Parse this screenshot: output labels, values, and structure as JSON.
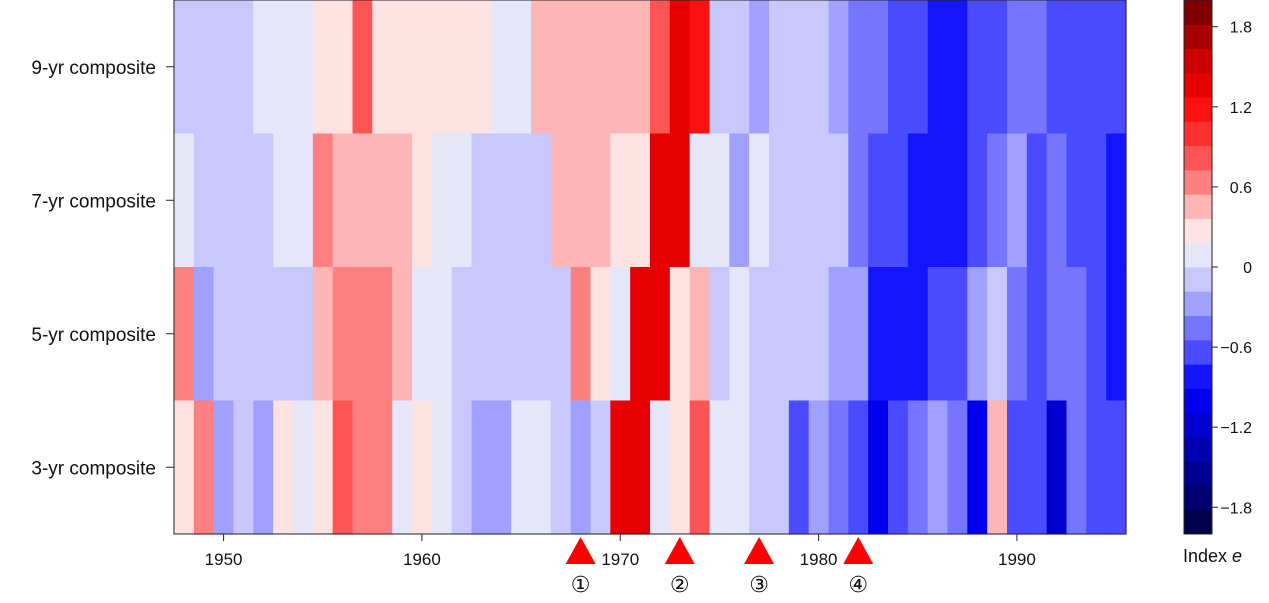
{
  "chart_data": {
    "type": "heatmap",
    "xlabel": "",
    "ylabel": "",
    "x_start": 1948,
    "x_end": 1995,
    "xlim": [
      1947.5,
      1995.5
    ],
    "x_ticks": [
      "1950",
      "1960",
      "1970",
      "1980",
      "1990"
    ],
    "rows": [
      {
        "label": "9-yr composite",
        "values": [
          0.1,
          0.1,
          0.1,
          0.1,
          0.3,
          0.3,
          0.3,
          0.5,
          0.5,
          1.0,
          0.5,
          0.5,
          0.5,
          0.5,
          0.5,
          0.5,
          0.3,
          0.3,
          0.7,
          0.7,
          0.7,
          0.7,
          0.7,
          0.7,
          1.0,
          1.6,
          1.4,
          0.1,
          0.1,
          -0.1,
          0.1,
          0.1,
          0.1,
          -0.1,
          -0.3,
          -0.3,
          -0.5,
          -0.5,
          -0.7,
          -0.7,
          -0.5,
          -0.5,
          -0.3,
          -0.3,
          -0.5,
          -0.5,
          -0.5,
          -0.5
        ]
      },
      {
        "label": "7-yr composite",
        "values": [
          0.3,
          0.1,
          0.1,
          0.1,
          0.1,
          0.3,
          0.3,
          0.9,
          0.7,
          0.7,
          0.7,
          0.7,
          0.5,
          0.3,
          0.3,
          0.1,
          0.1,
          0.1,
          0.1,
          0.7,
          0.7,
          0.7,
          0.5,
          0.5,
          1.6,
          1.6,
          0.3,
          0.3,
          -0.1,
          0.3,
          0.1,
          0.1,
          0.1,
          0.1,
          -0.3,
          -0.5,
          -0.5,
          -0.7,
          -0.7,
          -0.7,
          -0.5,
          -0.3,
          -0.1,
          -0.5,
          -0.3,
          -0.5,
          -0.5,
          -0.7
        ]
      },
      {
        "label": "5-yr composite",
        "values": [
          0.9,
          -0.1,
          0.1,
          0.1,
          0.1,
          0.1,
          0.1,
          0.7,
          0.9,
          0.9,
          0.9,
          0.7,
          0.3,
          0.3,
          0.1,
          0.1,
          0.1,
          0.1,
          0.1,
          0.1,
          0.9,
          0.5,
          0.3,
          1.6,
          1.6,
          0.5,
          0.7,
          0.1,
          0.3,
          0.1,
          0.1,
          0.1,
          0.1,
          -0.1,
          -0.1,
          -0.7,
          -0.7,
          -0.7,
          -0.5,
          -0.5,
          -0.1,
          0.1,
          -0.3,
          -0.5,
          -0.3,
          -0.3,
          -0.5,
          -0.7
        ]
      },
      {
        "label": "3-yr composite",
        "values": [
          0.5,
          0.9,
          -0.1,
          0.1,
          -0.1,
          0.5,
          0.3,
          0.5,
          1.0,
          0.9,
          0.9,
          0.3,
          0.5,
          0.3,
          0.1,
          -0.1,
          -0.1,
          0.3,
          0.3,
          0.1,
          -0.1,
          0.1,
          1.6,
          1.6,
          0.3,
          0.5,
          1.0,
          0.3,
          0.3,
          0.1,
          0.1,
          -0.5,
          -0.1,
          -0.3,
          -0.5,
          -1.0,
          -0.5,
          -0.3,
          -0.1,
          -0.3,
          -1.0,
          0.7,
          -0.5,
          -0.5,
          -1.2,
          -0.3,
          -0.5,
          -0.5
        ]
      }
    ],
    "colorbar": {
      "title": "Index e",
      "min": -2.0,
      "max": 2.0,
      "step": 0.2,
      "tick_values": [
        1.8,
        1.2,
        0.6,
        0,
        -0.6,
        -1.2,
        -1.8
      ],
      "tick_labels": [
        "1.8",
        "1.2",
        "0.6",
        "0",
        "−0.6",
        "−1.2",
        "−1.8"
      ],
      "colors": [
        "#00004d",
        "#000070",
        "#000090",
        "#0000b0",
        "#0000d0",
        "#0000ee",
        "#1414ff",
        "#4a4aff",
        "#7575ff",
        "#a0a0ff",
        "#c8c8ff",
        "#e6e6fb",
        "#fde2e2",
        "#fdb5b5",
        "#fd8080",
        "#fd5555",
        "#fd3030",
        "#fd1010",
        "#e60000",
        "#cc0000",
        "#a80000",
        "#800000"
      ]
    },
    "markers": [
      {
        "year": 1968,
        "label": "①"
      },
      {
        "year": 1973,
        "label": "②"
      },
      {
        "year": 1977,
        "label": "③"
      },
      {
        "year": 1982,
        "label": "④"
      }
    ],
    "marker_color": "#ff0000"
  }
}
